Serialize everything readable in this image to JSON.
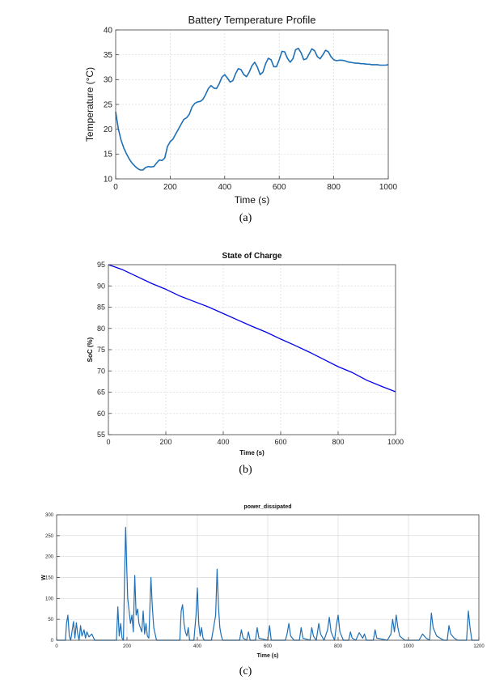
{
  "charts": [
    {
      "type": "line",
      "title": "Battery Temperature Profile",
      "xlabel": "Time (s)",
      "ylabel": "Temperature (°C)",
      "xlim": [
        0,
        1000
      ],
      "ylim": [
        10,
        40
      ],
      "xticks": [
        0,
        200,
        400,
        600,
        800,
        1000
      ],
      "yticks": [
        10,
        15,
        20,
        25,
        30,
        35,
        40
      ],
      "grid": true,
      "caption": "(a)",
      "line_color": "#1f6fb5",
      "series": [
        {
          "x": [
            0,
            10,
            20,
            30,
            40,
            50,
            60,
            70,
            80,
            90,
            100,
            110,
            120,
            130,
            140,
            150,
            160,
            170,
            180,
            190,
            200,
            210,
            220,
            230,
            240,
            250,
            260,
            270,
            280,
            290,
            300,
            310,
            320,
            330,
            340,
            350,
            360,
            370,
            380,
            390,
            400,
            410,
            420,
            430,
            440,
            450,
            460,
            470,
            480,
            490,
            500,
            510,
            520,
            530,
            540,
            550,
            560,
            570,
            580,
            590,
            600,
            610,
            620,
            630,
            640,
            650,
            660,
            670,
            680,
            690,
            700,
            710,
            720,
            730,
            740,
            750,
            760,
            770,
            780,
            790,
            800,
            810,
            820,
            830,
            840,
            850,
            860,
            870,
            880,
            890,
            900,
            910,
            920,
            930,
            940,
            950,
            960,
            970,
            980,
            990,
            1000
          ],
          "y": [
            23.5,
            20.0,
            17.8,
            16.2,
            15.0,
            14.0,
            13.2,
            12.6,
            12.1,
            11.8,
            11.8,
            12.3,
            12.5,
            12.4,
            12.5,
            13.2,
            13.8,
            13.7,
            14.2,
            16.5,
            17.5,
            18.0,
            19.0,
            20.0,
            21.0,
            22.0,
            22.3,
            23.0,
            24.5,
            25.2,
            25.5,
            25.6,
            26.0,
            27.0,
            28.2,
            28.8,
            28.3,
            28.2,
            29.2,
            30.5,
            31.0,
            30.3,
            29.5,
            29.8,
            31.2,
            32.2,
            32.0,
            31.0,
            30.6,
            31.5,
            32.8,
            33.5,
            32.5,
            31.0,
            31.5,
            33.2,
            34.3,
            34.0,
            32.6,
            32.6,
            34.0,
            35.7,
            35.6,
            34.3,
            33.5,
            34.2,
            36.0,
            36.3,
            35.4,
            34.0,
            34.2,
            35.2,
            36.2,
            35.8,
            34.6,
            34.2,
            35.0,
            35.9,
            35.6,
            34.6,
            34.0,
            33.8,
            33.9,
            33.9,
            33.8,
            33.6,
            33.5,
            33.4,
            33.3,
            33.3,
            33.2,
            33.2,
            33.1,
            33.1,
            33.0,
            33.0,
            33.0,
            32.9,
            32.9,
            32.9,
            33.0
          ]
        }
      ]
    },
    {
      "type": "line",
      "title": "State of Charge",
      "xlabel": "Time (s)",
      "ylabel": "SoC (%)",
      "xlim": [
        0,
        1000
      ],
      "ylim": [
        55,
        95
      ],
      "xticks": [
        0,
        200,
        400,
        600,
        800,
        1000
      ],
      "yticks": [
        55,
        60,
        65,
        70,
        75,
        80,
        85,
        90,
        95
      ],
      "grid": true,
      "caption": "(b)",
      "line_color": "#0000ee",
      "series": [
        {
          "x": [
            0,
            50,
            100,
            150,
            200,
            250,
            300,
            350,
            400,
            450,
            500,
            550,
            600,
            650,
            700,
            750,
            800,
            850,
            900,
            950,
            1000
          ],
          "y": [
            95.0,
            93.8,
            92.2,
            90.6,
            89.2,
            87.6,
            86.3,
            85.0,
            83.5,
            82.0,
            80.5,
            79.1,
            77.5,
            76.0,
            74.4,
            72.7,
            71.0,
            69.6,
            67.8,
            66.4,
            65.1
          ]
        }
      ]
    },
    {
      "type": "line",
      "title": "power_dissipated",
      "xlabel": "Time (s)",
      "ylabel": "W",
      "xlim": [
        0,
        1200
      ],
      "ylim": [
        0,
        300
      ],
      "xticks": [
        0,
        200,
        400,
        600,
        800,
        1000,
        1200
      ],
      "yticks": [
        0,
        50,
        100,
        150,
        200,
        250,
        300
      ],
      "grid": true,
      "caption": "(c)",
      "line_color": "#1f6fb5",
      "series": [
        {
          "x": [
            0,
            25,
            28,
            32,
            36,
            40,
            48,
            52,
            56,
            60,
            64,
            68,
            72,
            78,
            82,
            86,
            92,
            100,
            108,
            115,
            170,
            174,
            178,
            182,
            186,
            190,
            193,
            196,
            199,
            202,
            206,
            210,
            214,
            218,
            222,
            226,
            230,
            234,
            238,
            242,
            246,
            250,
            254,
            258,
            262,
            268,
            272,
            276,
            280,
            284,
            290,
            296,
            350,
            354,
            358,
            362,
            366,
            370,
            374,
            378,
            390,
            396,
            400,
            404,
            408,
            412,
            416,
            420,
            440,
            448,
            452,
            456,
            460,
            464,
            468,
            472,
            480,
            520,
            525,
            530,
            540,
            545,
            550,
            565,
            570,
            575,
            600,
            605,
            610,
            650,
            655,
            660,
            665,
            675,
            690,
            695,
            700,
            720,
            725,
            730,
            738,
            745,
            750,
            760,
            770,
            775,
            780,
            790,
            795,
            800,
            805,
            815,
            830,
            835,
            840,
            850,
            860,
            870,
            875,
            880,
            900,
            905,
            910,
            940,
            950,
            955,
            960,
            965,
            970,
            975,
            990,
            1030,
            1040,
            1050,
            1060,
            1065,
            1070,
            1080,
            1100,
            1110,
            1115,
            1120,
            1130,
            1140,
            1165,
            1170,
            1175,
            1180,
            1200
          ],
          "y": [
            0,
            0,
            40,
            60,
            10,
            0,
            45,
            5,
            42,
            15,
            0,
            35,
            10,
            25,
            5,
            20,
            8,
            15,
            0,
            0,
            0,
            80,
            10,
            40,
            5,
            0,
            150,
            270,
            180,
            100,
            70,
            40,
            60,
            20,
            155,
            60,
            75,
            40,
            30,
            20,
            70,
            15,
            40,
            10,
            5,
            150,
            80,
            30,
            15,
            0,
            0,
            0,
            0,
            70,
            85,
            40,
            20,
            10,
            30,
            0,
            0,
            60,
            125,
            40,
            10,
            30,
            5,
            0,
            0,
            40,
            60,
            170,
            80,
            30,
            10,
            0,
            0,
            0,
            25,
            5,
            0,
            20,
            0,
            0,
            30,
            5,
            0,
            35,
            0,
            0,
            15,
            40,
            10,
            0,
            0,
            30,
            5,
            0,
            30,
            10,
            0,
            40,
            15,
            0,
            25,
            55,
            20,
            0,
            35,
            60,
            20,
            0,
            0,
            20,
            5,
            0,
            18,
            5,
            15,
            0,
            0,
            25,
            5,
            0,
            15,
            50,
            20,
            60,
            30,
            10,
            0,
            0,
            15,
            5,
            0,
            65,
            30,
            10,
            0,
            0,
            35,
            15,
            5,
            0,
            0,
            70,
            30,
            0,
            0
          ]
        }
      ]
    }
  ]
}
